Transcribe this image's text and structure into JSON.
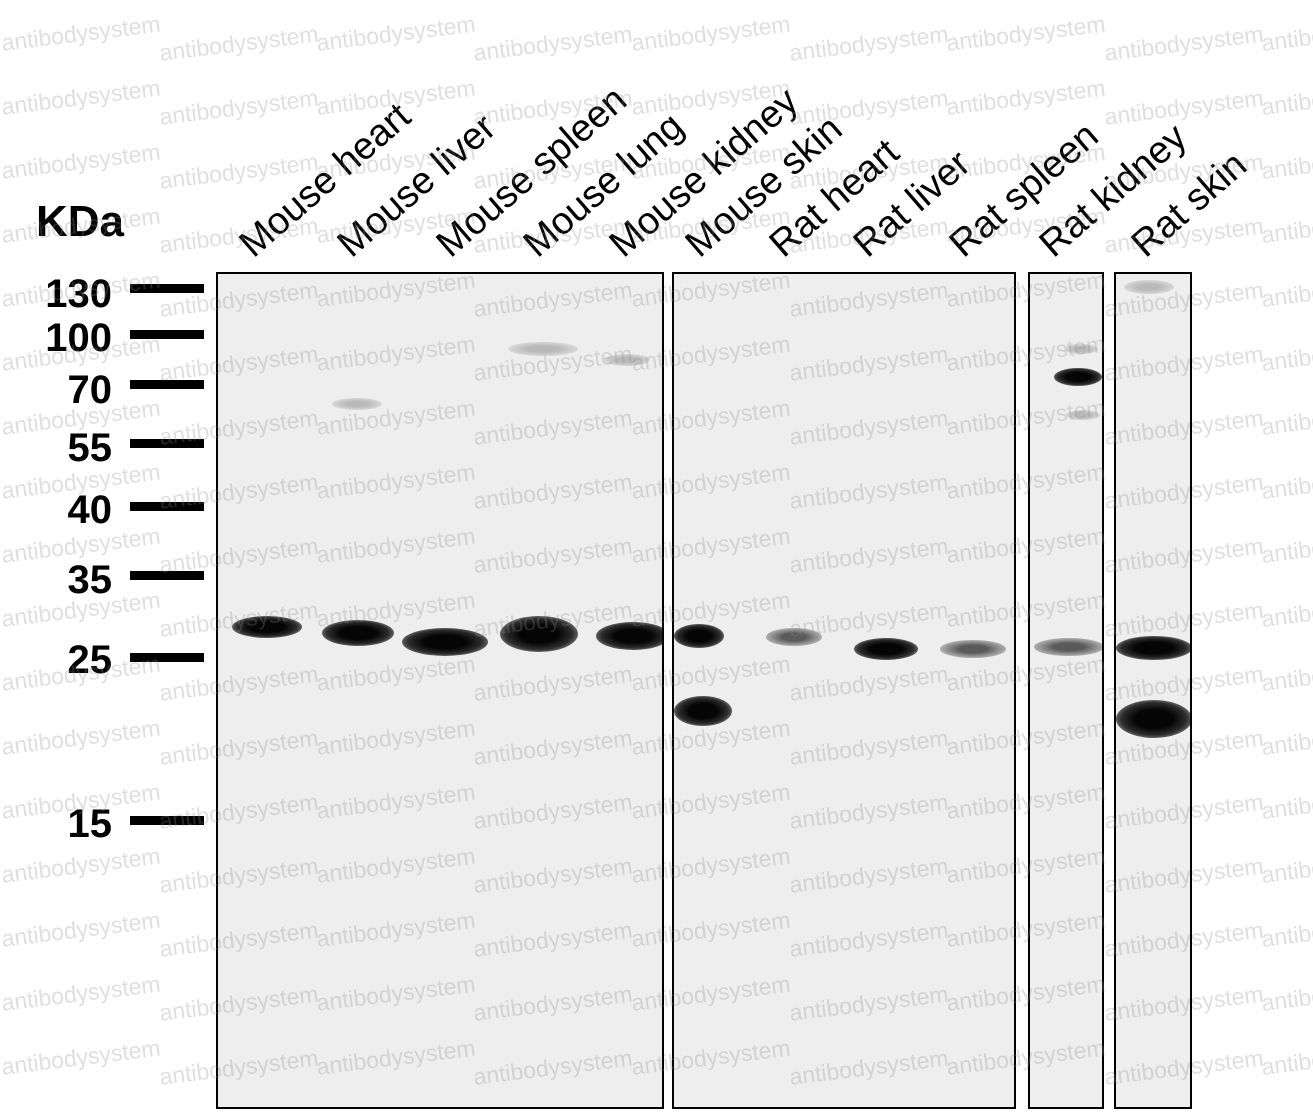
{
  "title": "KDa",
  "watermark": "antibodysystem",
  "markers": [
    "130",
    "100",
    "70",
    "55",
    "40",
    "35",
    "25",
    "15"
  ],
  "lanes": [
    "Mouse heart",
    "Mouse liver",
    "Mouse spleen",
    "Mouse lung",
    "Mouse kidney",
    "Mouse skin",
    "Rat heart",
    "Rat liver",
    "Rat spleen",
    "Rat kidney",
    "Rat skin"
  ],
  "colors": {
    "band": "#050505",
    "membrane": "#eeeeee",
    "text": "#000000"
  }
}
